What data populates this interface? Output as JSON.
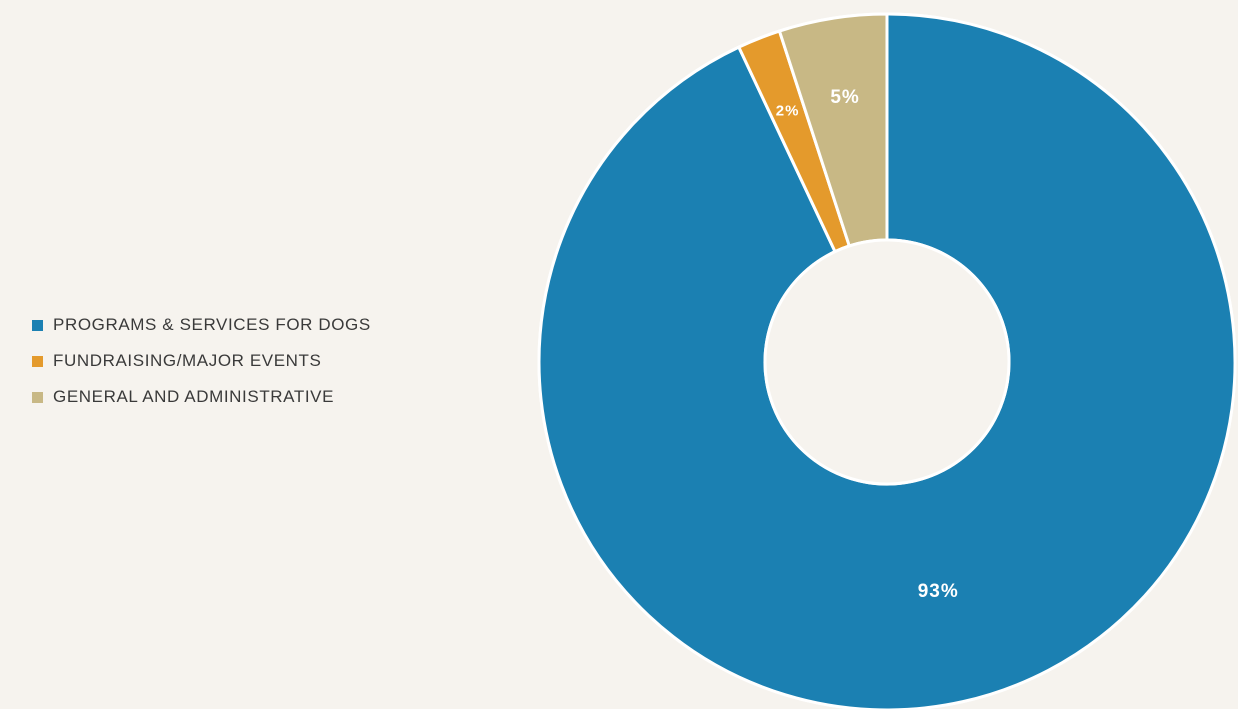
{
  "chart_data": {
    "type": "pie",
    "style": "donut",
    "title": "",
    "categories": [
      "PROGRAMS & SERVICES FOR DOGS",
      "FUNDRAISING/MAJOR EVENTS",
      "GENERAL AND ADMINISTRATIVE"
    ],
    "values": [
      93,
      2,
      5
    ],
    "value_labels": [
      "93%",
      "2%",
      "5%"
    ],
    "colors": [
      "#1b80b2",
      "#e49a2c",
      "#c8b885"
    ],
    "legend_position": "left"
  }
}
